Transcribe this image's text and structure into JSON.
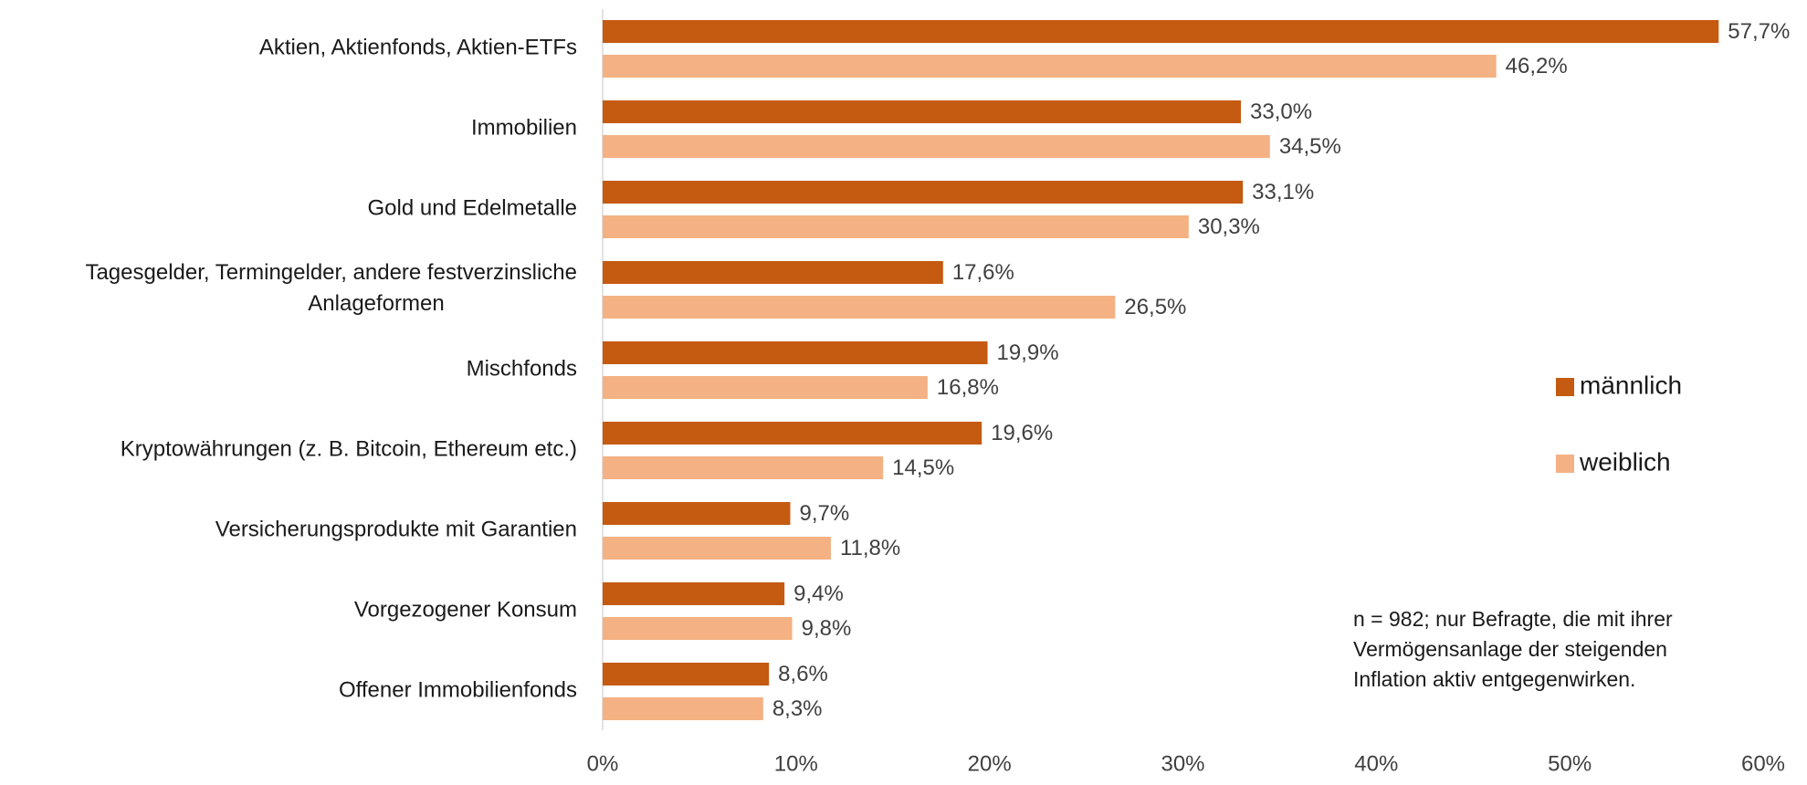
{
  "chart_data": {
    "type": "barh",
    "categories": [
      "Aktien, Aktienfonds, Aktien-ETFs",
      "Immobilien",
      "Gold und Edelmetalle",
      "Tagesgelder, Termingelder, andere festverzinsliche Anlageformen",
      "Mischfonds",
      "Kryptowährungen (z. B. Bitcoin, Ethereum etc.)",
      "Versicherungsprodukte mit Garantien",
      "Vorgezogener Konsum",
      "Offener Immobilienfonds"
    ],
    "series": [
      {
        "name": "männlich",
        "color": "#c55a11",
        "values": [
          57.7,
          33.0,
          33.1,
          17.6,
          19.9,
          19.6,
          9.7,
          9.4,
          8.6
        ],
        "value_labels": [
          "57,7%",
          "33,0%",
          "33,1%",
          "17,6%",
          "19,9%",
          "19,6%",
          "9,7%",
          "9,4%",
          "8,6%"
        ]
      },
      {
        "name": "weiblich",
        "color": "#f4b183",
        "values": [
          46.2,
          34.5,
          30.3,
          26.5,
          16.8,
          14.5,
          11.8,
          9.8,
          8.3
        ],
        "value_labels": [
          "46,2%",
          "34,5%",
          "30,3%",
          "26,5%",
          "16,8%",
          "14,5%",
          "11,8%",
          "9,8%",
          "8,3%"
        ]
      }
    ],
    "xlim": [
      0,
      60
    ],
    "xticks": [
      {
        "value": 0,
        "label": "0%"
      },
      {
        "value": 10,
        "label": "10%"
      },
      {
        "value": 20,
        "label": "20%"
      },
      {
        "value": 30,
        "label": "30%"
      },
      {
        "value": 40,
        "label": "40%"
      },
      {
        "value": 50,
        "label": "50%"
      },
      {
        "value": 60,
        "label": "60%"
      }
    ],
    "legend": "right",
    "annotation": [
      "n = 982; nur Befragte, die mit ihrer",
      "Vermögensanlage der steigenden",
      "Inflation aktiv entgegenwirken."
    ]
  }
}
